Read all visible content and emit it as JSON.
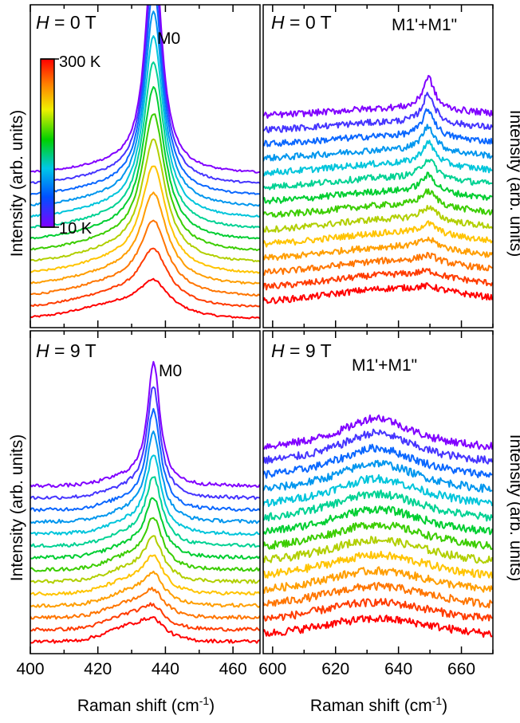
{
  "figure": {
    "colorbar": {
      "top_label": "300 K",
      "bottom_label": "10 K"
    },
    "ylabel": "Intensity (arb. units)",
    "xlabel_main": "Raman shift (cm",
    "xlabel_sup": "-1",
    "xlabel_end": ")"
  },
  "chart_data": [
    {
      "id": "top-left",
      "type": "line",
      "field_italic": "H",
      "field_rest": " = 0 T",
      "peak_label": "M0",
      "peak_center": 436.5,
      "peak_width": 2.8,
      "xlim": [
        400,
        468
      ],
      "ticks": [
        400,
        420,
        440,
        460
      ],
      "ylabel": "Intensity (arb. units)",
      "temperature_range_K": [
        10,
        300
      ],
      "series_count": 14,
      "colormap": [
        "#ff0000",
        "#ff7f00",
        "#ffd000",
        "#00cc00",
        "#00d4d4",
        "#0070ff",
        "#8000ff"
      ]
    },
    {
      "id": "top-right",
      "type": "line",
      "field_italic": "H",
      "field_rest": " = 0 T",
      "peak_label": "M1'+M1\"",
      "peak_center": 649.5,
      "peak_width": 2.2,
      "xlim": [
        597,
        670
      ],
      "ticks": [
        600,
        620,
        640,
        660
      ],
      "ylabel": "Intensity (arb. units)",
      "temperature_range_K": [
        10,
        300
      ],
      "series_count": 14,
      "colormap": [
        "#ff0000",
        "#ff7f00",
        "#ffd000",
        "#00cc00",
        "#00d4d4",
        "#0070ff",
        "#8000ff"
      ]
    },
    {
      "id": "bottom-left",
      "type": "line",
      "field_italic": "H",
      "field_rest": " = 9 T",
      "peak_label": "M0",
      "peak_center": 436.5,
      "peak_width": 2.2,
      "xlim": [
        400,
        468
      ],
      "ticks": [
        400,
        420,
        440,
        460
      ],
      "xlabel": "Raman shift (cm-1)",
      "ylabel": "Intensity (arb. units)",
      "series_count": 14,
      "colormap": [
        "#ff0000",
        "#ff7f00",
        "#ffd000",
        "#00cc00",
        "#00d4d4",
        "#0070ff",
        "#8000ff"
      ]
    },
    {
      "id": "bottom-right",
      "type": "line",
      "field_italic": "H",
      "field_rest": " = 9 T",
      "peak_label": "M1'+M1\"",
      "peak_center": 633,
      "peak_width": 12,
      "xlim": [
        597,
        670
      ],
      "ticks": [
        600,
        620,
        640,
        660
      ],
      "xlabel": "Raman shift (cm-1)",
      "ylabel": "Intensity (arb. units)",
      "series_count": 14,
      "colormap": [
        "#ff0000",
        "#ff7f00",
        "#ffd000",
        "#00cc00",
        "#00d4d4",
        "#0070ff",
        "#8000ff"
      ]
    }
  ]
}
